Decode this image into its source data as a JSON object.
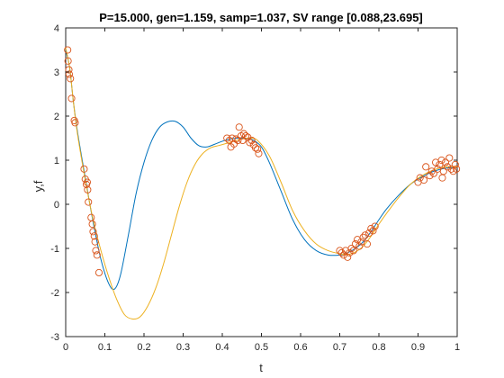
{
  "chart_data": {
    "type": "line",
    "title": "P=15.000, gen=1.159, samp=1.037, SV range [0.088,23.695]",
    "xlabel": "t",
    "ylabel": "y,f",
    "xlim": [
      0,
      1
    ],
    "ylim": [
      -3,
      4
    ],
    "x_ticks": [
      0,
      0.1,
      0.2,
      0.3,
      0.4,
      0.5,
      0.6,
      0.7,
      0.8,
      0.9,
      1
    ],
    "x_tick_labels": [
      "0",
      "0.1",
      "0.2",
      "0.3",
      "0.4",
      "0.5",
      "0.6",
      "0.7",
      "0.8",
      "0.9",
      "1"
    ],
    "y_ticks": [
      -3,
      -2,
      -1,
      0,
      1,
      2,
      3,
      4
    ],
    "y_tick_labels": [
      "-3",
      "-2",
      "-1",
      "0",
      "1",
      "2",
      "3",
      "4"
    ],
    "grid": false,
    "colors": {
      "series_blue": "#0072BD",
      "series_orange": "#EDB120",
      "markers": "#D95319",
      "axes": "#262626"
    },
    "series": [
      {
        "kind": "line",
        "color": "#0072BD",
        "points": [
          [
            0,
            3.5
          ],
          [
            0.01,
            3.1
          ],
          [
            0.02,
            2.3
          ],
          [
            0.03,
            1.65
          ],
          [
            0.05,
            0.6
          ],
          [
            0.07,
            -0.4
          ],
          [
            0.09,
            -1.25
          ],
          [
            0.11,
            -1.8
          ],
          [
            0.125,
            -1.92
          ],
          [
            0.14,
            -1.6
          ],
          [
            0.16,
            -0.7
          ],
          [
            0.18,
            0.25
          ],
          [
            0.2,
            0.95
          ],
          [
            0.22,
            1.45
          ],
          [
            0.24,
            1.75
          ],
          [
            0.26,
            1.87
          ],
          [
            0.28,
            1.88
          ],
          [
            0.3,
            1.75
          ],
          [
            0.32,
            1.5
          ],
          [
            0.34,
            1.33
          ],
          [
            0.36,
            1.3
          ],
          [
            0.38,
            1.36
          ],
          [
            0.4,
            1.43
          ],
          [
            0.42,
            1.48
          ],
          [
            0.44,
            1.5
          ],
          [
            0.46,
            1.5
          ],
          [
            0.48,
            1.45
          ],
          [
            0.5,
            1.3
          ],
          [
            0.52,
            0.95
          ],
          [
            0.55,
            0.3
          ],
          [
            0.58,
            -0.35
          ],
          [
            0.61,
            -0.8
          ],
          [
            0.64,
            -1.05
          ],
          [
            0.67,
            -1.15
          ],
          [
            0.7,
            -1.15
          ],
          [
            0.72,
            -1.1
          ],
          [
            0.74,
            -1.0
          ],
          [
            0.76,
            -0.85
          ],
          [
            0.78,
            -0.62
          ],
          [
            0.8,
            -0.35
          ],
          [
            0.82,
            -0.1
          ],
          [
            0.85,
            0.2
          ],
          [
            0.88,
            0.45
          ],
          [
            0.91,
            0.62
          ],
          [
            0.94,
            0.75
          ],
          [
            0.97,
            0.82
          ],
          [
            1.0,
            0.83
          ]
        ]
      },
      {
        "kind": "line",
        "color": "#EDB120",
        "points": [
          [
            0,
            3.55
          ],
          [
            0.01,
            3.1
          ],
          [
            0.02,
            2.3
          ],
          [
            0.03,
            1.6
          ],
          [
            0.05,
            0.55
          ],
          [
            0.07,
            -0.35
          ],
          [
            0.09,
            -1.05
          ],
          [
            0.11,
            -1.65
          ],
          [
            0.13,
            -2.15
          ],
          [
            0.15,
            -2.5
          ],
          [
            0.17,
            -2.6
          ],
          [
            0.19,
            -2.55
          ],
          [
            0.21,
            -2.3
          ],
          [
            0.23,
            -1.9
          ],
          [
            0.25,
            -1.35
          ],
          [
            0.27,
            -0.7
          ],
          [
            0.29,
            -0.05
          ],
          [
            0.31,
            0.5
          ],
          [
            0.33,
            0.9
          ],
          [
            0.35,
            1.15
          ],
          [
            0.37,
            1.28
          ],
          [
            0.39,
            1.33
          ],
          [
            0.41,
            1.38
          ],
          [
            0.43,
            1.43
          ],
          [
            0.45,
            1.48
          ],
          [
            0.47,
            1.5
          ],
          [
            0.49,
            1.45
          ],
          [
            0.52,
            1.1
          ],
          [
            0.55,
            0.5
          ],
          [
            0.58,
            -0.15
          ],
          [
            0.61,
            -0.6
          ],
          [
            0.64,
            -0.9
          ],
          [
            0.67,
            -1.05
          ],
          [
            0.7,
            -1.12
          ],
          [
            0.72,
            -1.14
          ],
          [
            0.74,
            -1.08
          ],
          [
            0.76,
            -0.95
          ],
          [
            0.78,
            -0.72
          ],
          [
            0.8,
            -0.45
          ],
          [
            0.82,
            -0.2
          ],
          [
            0.85,
            0.15
          ],
          [
            0.88,
            0.45
          ],
          [
            0.91,
            0.65
          ],
          [
            0.94,
            0.78
          ],
          [
            0.97,
            0.85
          ],
          [
            1.0,
            0.85
          ]
        ]
      },
      {
        "kind": "markers",
        "color": "#D95319",
        "points": [
          [
            0.005,
            3.5
          ],
          [
            0.006,
            3.25
          ],
          [
            0.008,
            3.05
          ],
          [
            0.009,
            2.95
          ],
          [
            0.012,
            2.85
          ],
          [
            0.015,
            2.4
          ],
          [
            0.022,
            1.9
          ],
          [
            0.024,
            1.85
          ],
          [
            0.047,
            0.8
          ],
          [
            0.05,
            0.57
          ],
          [
            0.053,
            0.45
          ],
          [
            0.056,
            0.33
          ],
          [
            0.058,
            0.05
          ],
          [
            0.055,
            0.5
          ],
          [
            0.065,
            -0.3
          ],
          [
            0.068,
            -0.45
          ],
          [
            0.07,
            -0.62
          ],
          [
            0.073,
            -0.72
          ],
          [
            0.075,
            -0.85
          ],
          [
            0.077,
            -1.05
          ],
          [
            0.08,
            -1.15
          ],
          [
            0.085,
            -1.55
          ],
          [
            0.412,
            1.5
          ],
          [
            0.418,
            1.45
          ],
          [
            0.422,
            1.3
          ],
          [
            0.425,
            1.5
          ],
          [
            0.43,
            1.37
          ],
          [
            0.435,
            1.48
          ],
          [
            0.44,
            1.45
          ],
          [
            0.443,
            1.75
          ],
          [
            0.448,
            1.55
          ],
          [
            0.452,
            1.45
          ],
          [
            0.455,
            1.6
          ],
          [
            0.46,
            1.55
          ],
          [
            0.465,
            1.52
          ],
          [
            0.47,
            1.4
          ],
          [
            0.475,
            1.45
          ],
          [
            0.48,
            1.35
          ],
          [
            0.485,
            1.28
          ],
          [
            0.49,
            1.25
          ],
          [
            0.493,
            1.15
          ],
          [
            0.7,
            -1.05
          ],
          [
            0.705,
            -1.1
          ],
          [
            0.71,
            -1.15
          ],
          [
            0.715,
            -1.05
          ],
          [
            0.72,
            -1.2
          ],
          [
            0.725,
            -1.1
          ],
          [
            0.73,
            -1.0
          ],
          [
            0.735,
            -1.05
          ],
          [
            0.74,
            -0.9
          ],
          [
            0.745,
            -0.8
          ],
          [
            0.75,
            -0.95
          ],
          [
            0.755,
            -0.85
          ],
          [
            0.76,
            -0.75
          ],
          [
            0.765,
            -0.7
          ],
          [
            0.77,
            -0.9
          ],
          [
            0.775,
            -0.65
          ],
          [
            0.78,
            -0.55
          ],
          [
            0.785,
            -0.6
          ],
          [
            0.79,
            -0.5
          ],
          [
            0.9,
            0.5
          ],
          [
            0.905,
            0.6
          ],
          [
            0.915,
            0.55
          ],
          [
            0.92,
            0.85
          ],
          [
            0.93,
            0.65
          ],
          [
            0.935,
            0.75
          ],
          [
            0.94,
            0.7
          ],
          [
            0.945,
            0.95
          ],
          [
            0.95,
            0.8
          ],
          [
            0.955,
            0.9
          ],
          [
            0.96,
            1.0
          ],
          [
            0.962,
            0.6
          ],
          [
            0.965,
            0.75
          ],
          [
            0.97,
            0.95
          ],
          [
            0.975,
            0.85
          ],
          [
            0.98,
            1.05
          ],
          [
            0.985,
            0.8
          ],
          [
            0.99,
            0.75
          ],
          [
            0.995,
            0.9
          ],
          [
            0.998,
            0.8
          ]
        ]
      }
    ]
  }
}
